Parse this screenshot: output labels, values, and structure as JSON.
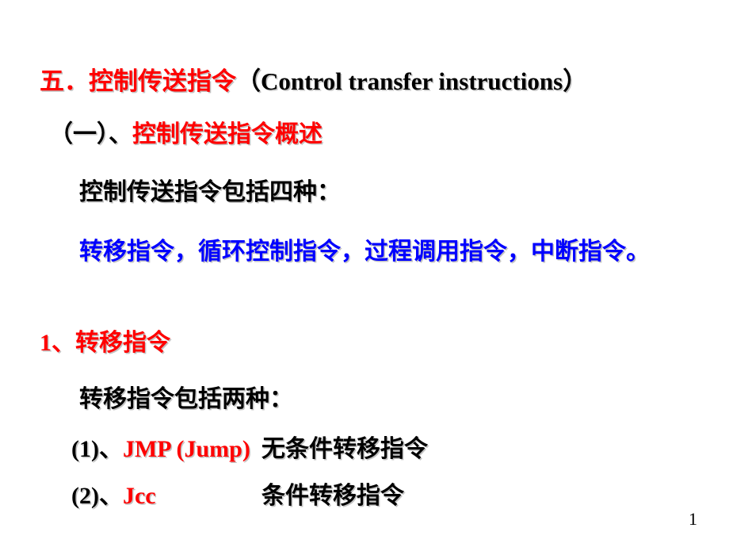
{
  "title": {
    "prefix": "五．控制传送指令",
    "paren_open": "（",
    "english": "Control transfer instructions",
    "paren_close": "）"
  },
  "overview": {
    "label_prefix": "（一）、",
    "label_red": "控制传送指令概述",
    "line1": "控制传送指令包括四种：",
    "line2": "转移指令，循环控制指令，过程调用指令，中断指令。"
  },
  "section1": {
    "heading": "1、转移指令",
    "line1": "转移指令包括两种：",
    "item1_prefix": "(1)、",
    "item1_red": "JMP (Jump)",
    "item1_desc": "无条件转移指令",
    "item2_prefix": "(2)、",
    "item2_red": "Jcc",
    "item2_desc": "条件转移指令"
  },
  "page_number": "1"
}
